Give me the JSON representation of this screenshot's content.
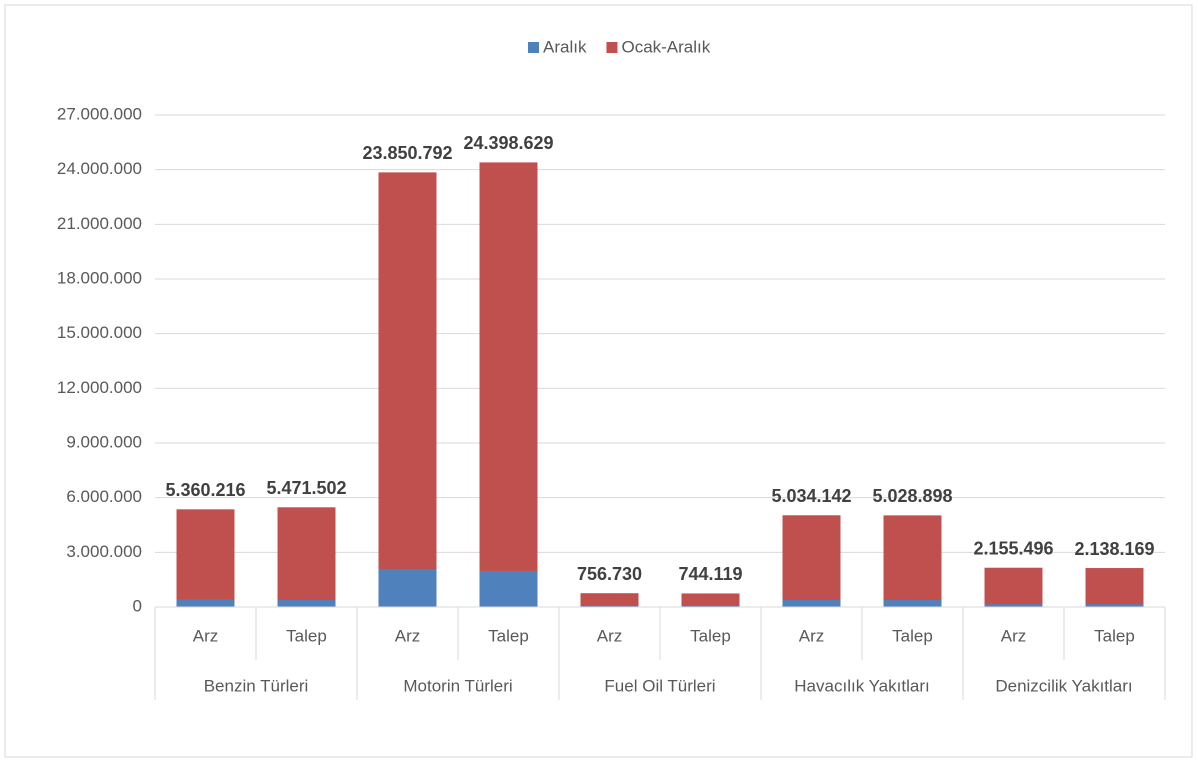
{
  "chart_data": {
    "type": "bar",
    "overlap": true,
    "groups": [
      "Benzin Türleri",
      "Motorin Türleri",
      "Fuel Oil Türleri",
      "Havacılık Yakıtları",
      "Denizcilik Yakıtları"
    ],
    "categories": [
      "Arz",
      "Talep",
      "Arz",
      "Talep",
      "Arz",
      "Talep",
      "Arz",
      "Talep",
      "Arz",
      "Talep"
    ],
    "series": [
      {
        "name": "Ocak-Aralık",
        "color": "#c0504d",
        "values": [
          5360216,
          5471502,
          23850792,
          24398629,
          756730,
          744119,
          5034142,
          5028898,
          2155496,
          2138169
        ],
        "value_labels": [
          "5.360.216",
          "5.471.502",
          "23.850.792",
          "24.398.629",
          "756.730",
          "744.119",
          "5.034.142",
          "5.028.898",
          "2.155.496",
          "2.138.169"
        ]
      },
      {
        "name": "Aralık",
        "color": "#4f81bd",
        "values": [
          420000,
          380000,
          2090000,
          1980000,
          60000,
          60000,
          380000,
          380000,
          150000,
          150000
        ]
      }
    ],
    "legend": "top",
    "ylim": [
      0,
      27000000
    ],
    "yticks": [
      0,
      {
        "value": 3000000,
        "label": "3.000.000"
      },
      {
        "value": 6000000,
        "label": "6.000.000"
      },
      {
        "value": 9000000,
        "label": "9.000.000"
      },
      {
        "value": 12000000,
        "label": "12.000.000"
      },
      {
        "value": 15000000,
        "label": "15.000.000"
      },
      {
        "value": 18000000,
        "label": "18.000.000"
      },
      {
        "value": 21000000,
        "label": "21.000.000"
      },
      {
        "value": 24000000,
        "label": "24.000.000"
      },
      {
        "value": 27000000,
        "label": "27.000.000"
      }
    ],
    "grid": true
  }
}
